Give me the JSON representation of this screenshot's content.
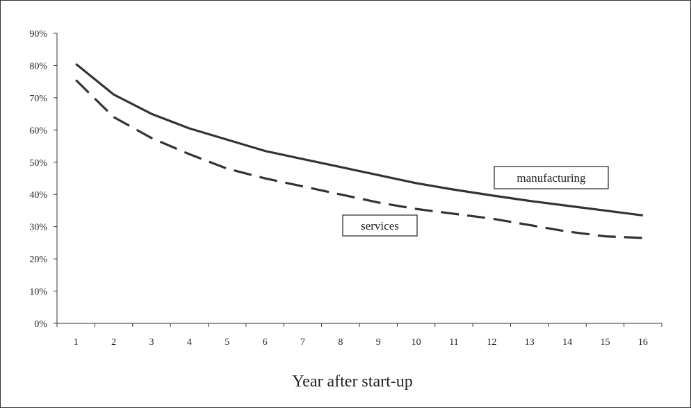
{
  "chart_data": {
    "type": "line",
    "title": "",
    "xlabel": "Year after start-up",
    "ylabel": "",
    "x": [
      1,
      2,
      3,
      4,
      5,
      6,
      7,
      8,
      9,
      10,
      11,
      12,
      13,
      14,
      15,
      16
    ],
    "x_tick_labels": [
      "1",
      "2",
      "3",
      "4",
      "5",
      "6",
      "7",
      "8",
      "9",
      "10",
      "11",
      "12",
      "13",
      "14",
      "15",
      "16"
    ],
    "y_tick_values": [
      0,
      10,
      20,
      30,
      40,
      50,
      60,
      70,
      80,
      90
    ],
    "y_tick_labels": [
      "0%",
      "10%",
      "20%",
      "30%",
      "40%",
      "50%",
      "60%",
      "70%",
      "80%",
      "90%"
    ],
    "ylim": [
      0,
      90
    ],
    "y_unit": "%",
    "grid": false,
    "legend": "none",
    "series": [
      {
        "name": "manufacturing",
        "style": "solid",
        "color": "#333333",
        "values": [
          80.5,
          71,
          65,
          60.5,
          57,
          53.5,
          51,
          48.5,
          46,
          43.5,
          41.5,
          39.7,
          38,
          36.5,
          35,
          33.5
        ]
      },
      {
        "name": "services",
        "style": "dashed",
        "color": "#333333",
        "values": [
          75.5,
          64,
          57.5,
          52.5,
          48,
          45,
          42.5,
          40,
          37.5,
          35.5,
          34,
          32.5,
          30.5,
          28.5,
          27,
          26.5
        ]
      }
    ]
  }
}
